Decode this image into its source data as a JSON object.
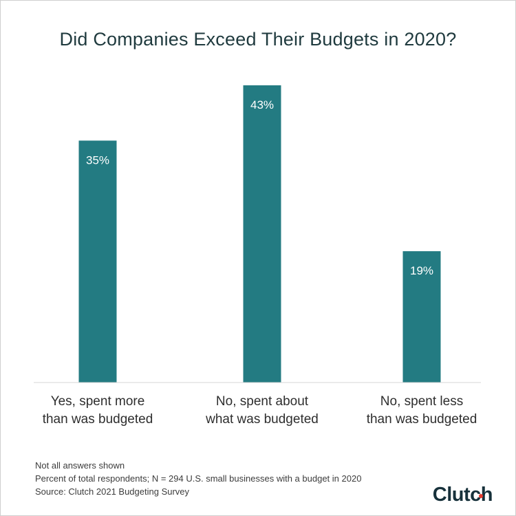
{
  "title": "Did Companies Exceed Their Budgets in 2020?",
  "chart_data": {
    "type": "bar",
    "title": "Did Companies Exceed Their Budgets in 2020?",
    "categories": [
      [
        "Yes, spent more",
        "than was budgeted"
      ],
      [
        "No, spent about",
        "what was budgeted"
      ],
      [
        "No, spent less",
        "than was budgeted"
      ]
    ],
    "values": [
      35,
      43,
      19
    ],
    "data_labels": [
      "35%",
      "43%",
      "19%"
    ],
    "ylim": [
      0,
      43
    ],
    "grid": false,
    "legend": "none",
    "bar_color": "#237b82"
  },
  "notes": [
    "Not all answers shown",
    "Percent of total respondents; N = 294 U.S. small businesses with a budget in 2020",
    "Source: Clutch 2021 Budgeting Survey"
  ],
  "logo": {
    "text": "Clutch",
    "dot_color": "#e63a2e"
  }
}
